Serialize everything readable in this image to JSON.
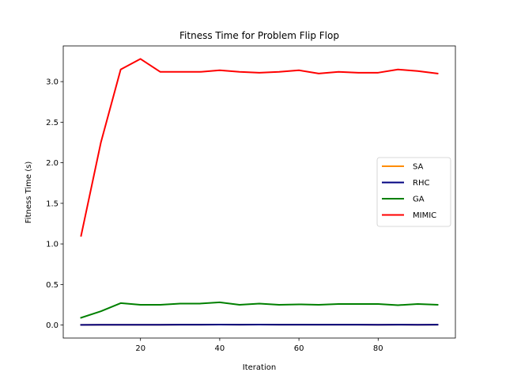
{
  "chart_data": {
    "type": "line",
    "title": "Fitness Time for Problem Flip Flop",
    "xlabel": "Iteration",
    "ylabel": "Fitness Time (s)",
    "xlim": [
      0.5,
      99.5
    ],
    "ylim": [
      -0.16,
      3.44
    ],
    "x_ticks": [
      20,
      40,
      60,
      80
    ],
    "y_ticks": [
      0.0,
      0.5,
      1.0,
      1.5,
      2.0,
      2.5,
      3.0
    ],
    "grid": false,
    "legend_position": "center-right",
    "x": [
      5,
      10,
      15,
      20,
      25,
      30,
      35,
      40,
      45,
      50,
      55,
      60,
      65,
      70,
      75,
      80,
      85,
      90,
      95
    ],
    "series": [
      {
        "name": "SA",
        "color": "#ff8c00",
        "values": [
          0.002,
          0.003,
          0.003,
          0.004,
          0.004,
          0.005,
          0.005,
          0.006,
          0.005,
          0.006,
          0.005,
          0.005,
          0.005,
          0.005,
          0.005,
          0.004,
          0.005,
          0.004,
          0.005
        ]
      },
      {
        "name": "RHC",
        "color": "#000080",
        "values": [
          0.002,
          0.003,
          0.003,
          0.004,
          0.004,
          0.005,
          0.005,
          0.006,
          0.005,
          0.006,
          0.005,
          0.005,
          0.005,
          0.005,
          0.005,
          0.004,
          0.005,
          0.004,
          0.005
        ]
      },
      {
        "name": "GA",
        "color": "#008000",
        "values": [
          0.09,
          0.17,
          0.27,
          0.25,
          0.25,
          0.265,
          0.265,
          0.28,
          0.25,
          0.265,
          0.25,
          0.255,
          0.25,
          0.26,
          0.26,
          0.26,
          0.245,
          0.26,
          0.25
        ]
      },
      {
        "name": "MIMIC",
        "color": "#ff0000",
        "values": [
          1.1,
          2.25,
          3.15,
          3.28,
          3.12,
          3.12,
          3.12,
          3.14,
          3.12,
          3.11,
          3.12,
          3.14,
          3.1,
          3.12,
          3.11,
          3.11,
          3.15,
          3.13,
          3.1
        ]
      }
    ]
  }
}
